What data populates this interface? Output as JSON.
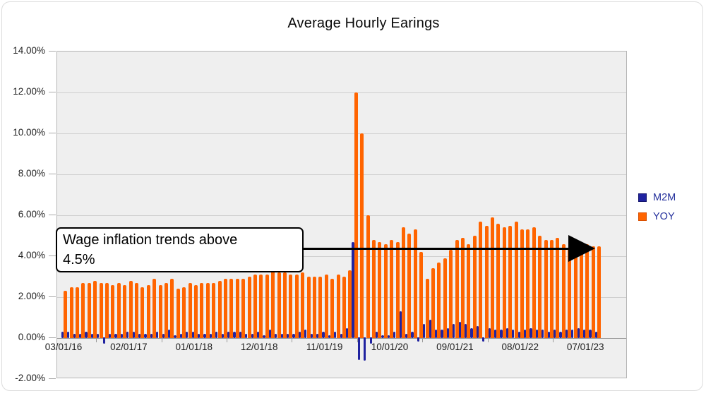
{
  "title": "Average Hourly Earings",
  "annotation": {
    "line1": "Wage inflation trends above",
    "line2": "4.5%"
  },
  "legend": {
    "m2m_label": "M2M",
    "yoy_label": "YOY"
  },
  "colors": {
    "m2m": "#2023a0",
    "yoy": "#ff6400",
    "wall_background": "#efefef",
    "gridline": "#cfcfcf",
    "annotation_border": "#000000",
    "legend_text": "#24309c"
  },
  "y_axis": {
    "ticks": [
      {
        "label": "14.00%",
        "value": 14
      },
      {
        "label": "12.00%",
        "value": 12
      },
      {
        "label": "10.00%",
        "value": 10
      },
      {
        "label": "8.00%",
        "value": 8
      },
      {
        "label": "6.00%",
        "value": 6
      },
      {
        "label": "4.00%",
        "value": 4
      },
      {
        "label": "2.00%",
        "value": 2
      },
      {
        "label": "0.00%",
        "value": 0
      },
      {
        "label": "-2.00%",
        "value": -2
      }
    ]
  },
  "x_axis": {
    "ticks": [
      {
        "label": "03/01/16",
        "month_index": 0
      },
      {
        "label": "02/01/17",
        "month_index": 11
      },
      {
        "label": "01/01/18",
        "month_index": 22
      },
      {
        "label": "12/01/18",
        "month_index": 33
      },
      {
        "label": "11/01/19",
        "month_index": 44
      },
      {
        "label": "10/01/20",
        "month_index": 55
      },
      {
        "label": "09/01/21",
        "month_index": 66
      },
      {
        "label": "08/01/22",
        "month_index": 77
      },
      {
        "label": "07/01/23",
        "month_index": 88
      }
    ]
  },
  "chart_data": {
    "type": "bar",
    "title": "Average Hourly Earings",
    "xlabel": "",
    "ylabel": "",
    "ylim": [
      -2,
      14
    ],
    "grid": true,
    "legend_position": "right",
    "gridline_values": [
      12,
      10,
      8,
      6,
      4,
      2,
      0
    ],
    "x": [
      "2016-03",
      "2016-04",
      "2016-05",
      "2016-06",
      "2016-07",
      "2016-08",
      "2016-09",
      "2016-10",
      "2016-11",
      "2016-12",
      "2017-01",
      "2017-02",
      "2017-03",
      "2017-04",
      "2017-05",
      "2017-06",
      "2017-07",
      "2017-08",
      "2017-09",
      "2017-10",
      "2017-11",
      "2017-12",
      "2018-01",
      "2018-02",
      "2018-03",
      "2018-04",
      "2018-05",
      "2018-06",
      "2018-07",
      "2018-08",
      "2018-09",
      "2018-10",
      "2018-11",
      "2018-12",
      "2019-01",
      "2019-02",
      "2019-03",
      "2019-04",
      "2019-05",
      "2019-06",
      "2019-07",
      "2019-08",
      "2019-09",
      "2019-10",
      "2019-11",
      "2019-12",
      "2020-01",
      "2020-02",
      "2020-03",
      "2020-04",
      "2020-05",
      "2020-06",
      "2020-07",
      "2020-08",
      "2020-09",
      "2020-10",
      "2020-11",
      "2020-12",
      "2021-01",
      "2021-02",
      "2021-03",
      "2021-04",
      "2021-05",
      "2021-06",
      "2021-07",
      "2021-08",
      "2021-09",
      "2021-10",
      "2021-11",
      "2021-12",
      "2022-01",
      "2022-02",
      "2022-03",
      "2022-04",
      "2022-05",
      "2022-06",
      "2022-07",
      "2022-08",
      "2022-09",
      "2022-10",
      "2022-11",
      "2022-12",
      "2023-01",
      "2023-02",
      "2023-03",
      "2023-04",
      "2023-05",
      "2023-06",
      "2023-07",
      "2023-08",
      "2023-09"
    ],
    "series": [
      {
        "name": "M2M",
        "color": "#2023a0",
        "values": [
          0.3,
          0.3,
          0.2,
          0.2,
          0.3,
          0.2,
          0.2,
          -0.3,
          0.2,
          0.2,
          0.2,
          0.3,
          0.3,
          0.2,
          0.2,
          0.2,
          0.3,
          0.2,
          0.4,
          0.1,
          0.2,
          0.3,
          0.3,
          0.2,
          0.2,
          0.2,
          0.3,
          0.2,
          0.3,
          0.3,
          0.3,
          0.2,
          0.2,
          0.3,
          0.1,
          0.4,
          0.2,
          0.2,
          0.2,
          0.2,
          0.3,
          0.4,
          0.2,
          0.2,
          0.3,
          0.1,
          0.3,
          0.2,
          0.5,
          4.7,
          -1.1,
          -1.15,
          -0.3,
          0.3,
          0.1,
          0.1,
          0.3,
          1.3,
          0.2,
          0.3,
          -0.2,
          0.7,
          0.9,
          0.4,
          0.4,
          0.5,
          0.7,
          0.8,
          0.7,
          0.5,
          0.6,
          -0.2,
          0.5,
          0.4,
          0.4,
          0.5,
          0.4,
          0.3,
          0.4,
          0.5,
          0.4,
          0.4,
          0.3,
          0.4,
          0.3,
          0.4,
          0.4,
          0.5,
          0.4,
          0.4,
          0.3
        ]
      },
      {
        "name": "YOY",
        "color": "#ff6400",
        "values": [
          2.3,
          2.5,
          2.5,
          2.7,
          2.7,
          2.8,
          2.7,
          2.7,
          2.6,
          2.7,
          2.6,
          2.8,
          2.7,
          2.5,
          2.6,
          2.9,
          2.6,
          2.7,
          2.9,
          2.4,
          2.5,
          2.7,
          2.6,
          2.7,
          2.7,
          2.7,
          2.8,
          2.9,
          2.9,
          2.9,
          2.9,
          3.0,
          3.1,
          3.1,
          3.1,
          3.4,
          3.2,
          3.2,
          3.1,
          3.1,
          3.2,
          3.0,
          3.0,
          3.0,
          3.1,
          2.9,
          3.1,
          3.0,
          3.3,
          12.0,
          10.0,
          6.0,
          4.8,
          4.7,
          4.6,
          4.8,
          4.7,
          5.4,
          5.1,
          5.3,
          4.2,
          2.9,
          3.4,
          3.7,
          3.9,
          4.3,
          4.8,
          4.9,
          4.6,
          5.0,
          5.7,
          5.5,
          5.9,
          5.6,
          5.4,
          5.5,
          5.7,
          5.3,
          5.3,
          5.4,
          5.0,
          4.8,
          4.8,
          4.9,
          4.6,
          4.4,
          4.5,
          4.3,
          4.6,
          4.5,
          4.5
        ]
      }
    ],
    "annotations": [
      {
        "type": "textbox",
        "text": "Wage inflation trends above 4.5%"
      },
      {
        "type": "arrow",
        "y_value": 4.3,
        "direction": "right"
      }
    ]
  }
}
